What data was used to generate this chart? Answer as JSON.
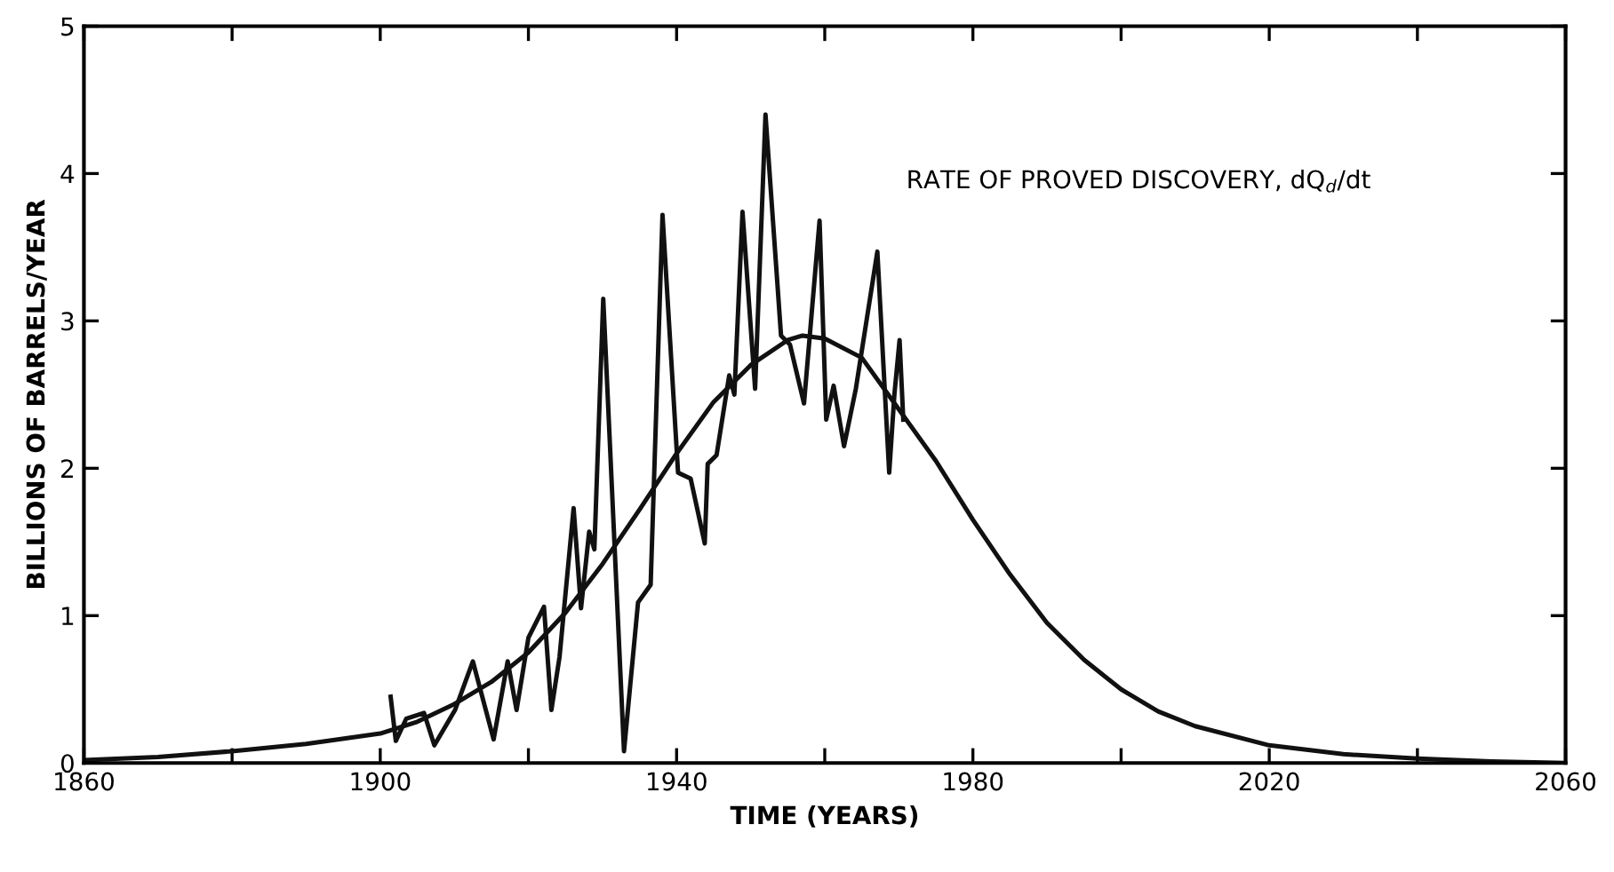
{
  "chart_data": {
    "type": "line",
    "xlabel": "TIME (YEARS)",
    "ylabel": "BILLIONS OF BARRELS/YEAR",
    "annotations": [
      "RATE OF PROVED DISCOVERY, dQ$_{d}$/dt"
    ],
    "xlim": [
      1860,
      2060
    ],
    "xticks": [
      1860,
      {
        "value": 1880,
        "label": null
      },
      1900,
      {
        "value": 1920,
        "label": null
      },
      1940,
      {
        "value": 1960,
        "label": null
      },
      1980,
      {
        "value": 2000,
        "label": null
      },
      2020,
      {
        "value": 2040,
        "label": null
      },
      2060
    ],
    "ylim": [
      0,
      5
    ],
    "yticks": [
      0,
      1,
      2,
      3,
      4,
      5
    ],
    "grid": false,
    "legend": false,
    "marker": "none",
    "line_style": "solid",
    "series": [
      {
        "color": "#111111",
        "x": [
          1901.4,
          1902.1,
          1903.5,
          1905.9,
          1907.3,
          1910.1,
          1912.5,
          1915.3,
          1917.2,
          1918.4,
          1920.0,
          1922.1,
          1923.1,
          1924.2,
          1926.1,
          1927.1,
          1928.2,
          1928.9,
          1930.1,
          1932.9,
          1934.8,
          1936.5,
          1938.1,
          1940.2,
          1941.9,
          1943.8,
          1944.2,
          1945.4,
          1947.1,
          1947.8,
          1948.9,
          1950.6,
          1952.0,
          1954.1,
          1955.3,
          1957.2,
          1959.3,
          1960.2,
          1961.2,
          1962.6,
          1964.2,
          1967.1,
          1968.7,
          1969.4,
          1970.1,
          1970.6
        ],
        "values": [
          0.45,
          0.15,
          0.3,
          0.34,
          0.12,
          0.36,
          0.69,
          0.16,
          0.69,
          0.36,
          0.85,
          1.06,
          0.36,
          0.72,
          1.73,
          1.05,
          1.57,
          1.45,
          3.15,
          0.08,
          1.09,
          1.21,
          3.72,
          1.97,
          1.93,
          1.49,
          2.03,
          2.09,
          2.63,
          2.5,
          3.74,
          2.54,
          4.4,
          2.9,
          2.84,
          2.44,
          3.68,
          2.33,
          2.56,
          2.15,
          2.54,
          3.47,
          1.97,
          2.5,
          2.87,
          2.33
        ]
      },
      {
        "color": "#111111",
        "x": [
          1860,
          1870,
          1880,
          1890,
          1900,
          1905,
          1910,
          1915,
          1920,
          1925,
          1930,
          1935,
          1940,
          1945,
          1950,
          1955,
          1957,
          1960,
          1965,
          1970,
          1975,
          1980,
          1985,
          1990,
          1995,
          2000,
          2005,
          2010,
          2020,
          2030,
          2040,
          2050,
          2060
        ],
        "values": [
          0.02,
          0.04,
          0.08,
          0.13,
          0.2,
          0.28,
          0.4,
          0.55,
          0.75,
          1.02,
          1.35,
          1.72,
          2.1,
          2.45,
          2.7,
          2.87,
          2.9,
          2.88,
          2.75,
          2.4,
          2.05,
          1.65,
          1.28,
          0.95,
          0.7,
          0.5,
          0.35,
          0.25,
          0.12,
          0.06,
          0.03,
          0.01,
          0.0
        ]
      }
    ]
  }
}
